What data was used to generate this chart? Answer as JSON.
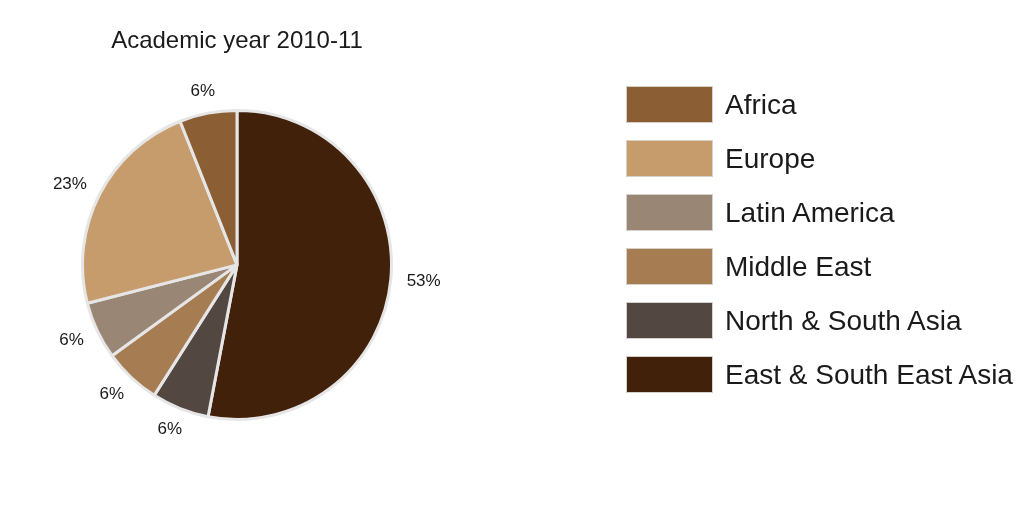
{
  "chart_data": {
    "type": "pie",
    "title": "Academic year 2010-11",
    "categories": [
      "Africa",
      "Europe",
      "Latin America",
      "Middle East",
      "North & South Asia",
      "East & South East Asia"
    ],
    "values": [
      6,
      23,
      6,
      6,
      6,
      53
    ],
    "value_labels": [
      "6%",
      "23%",
      "6%",
      "6%",
      "6%",
      "53%"
    ],
    "colors": [
      "#8b5e34",
      "#c69c6d",
      "#998675",
      "#a67c52",
      "#534741",
      "#42210b"
    ],
    "legend": "right"
  }
}
